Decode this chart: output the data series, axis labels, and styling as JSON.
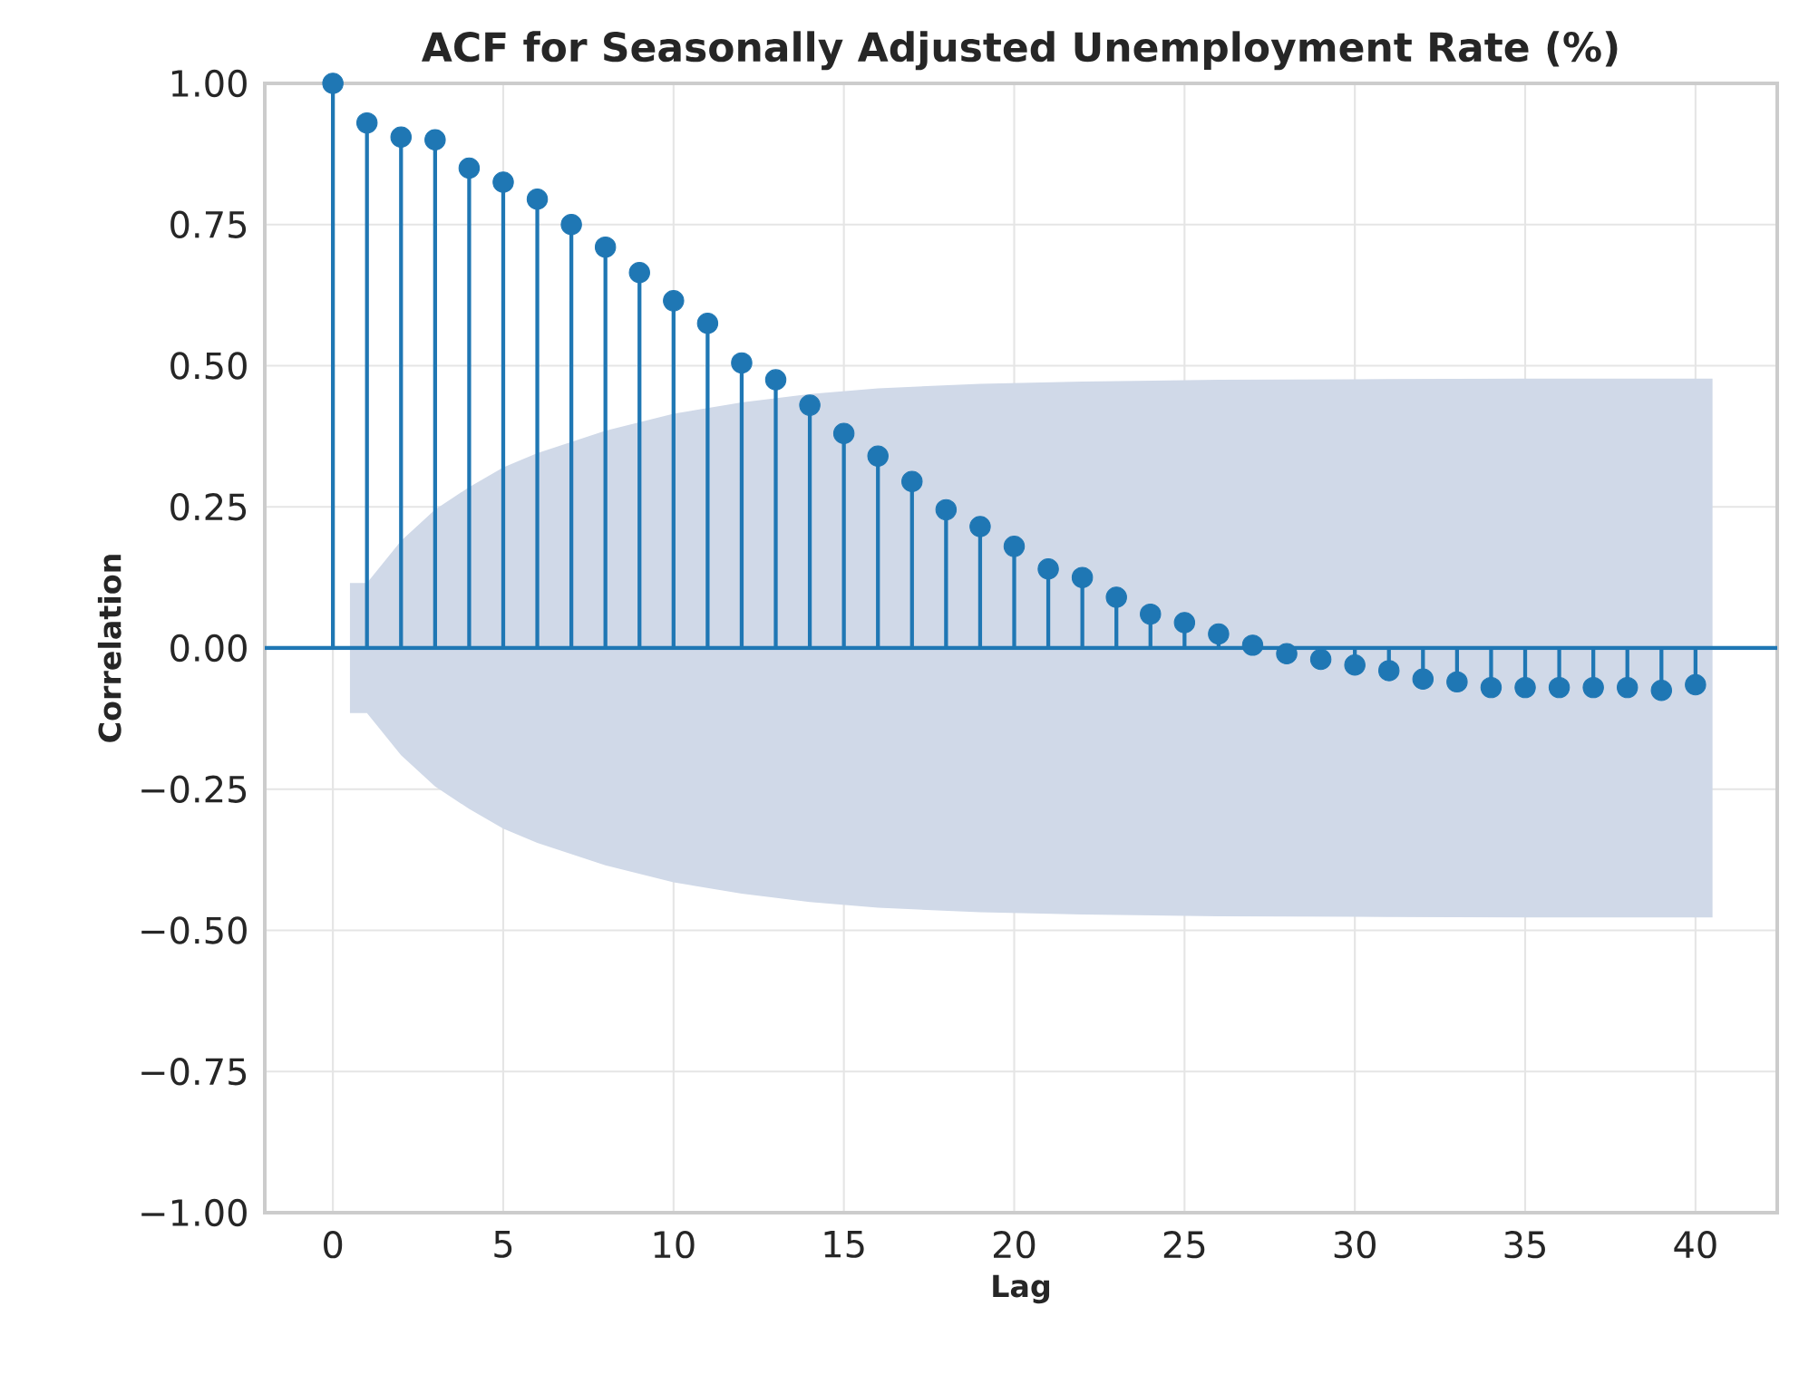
{
  "chart_data": {
    "type": "lollipop",
    "title": "ACF for Seasonally Adjusted Unemployment Rate (%)",
    "xlabel": "Lag",
    "ylabel": "Correlation",
    "xlim": [
      -2,
      42.4
    ],
    "ylim": [
      -1,
      1
    ],
    "xticks": [
      0,
      5,
      10,
      15,
      20,
      25,
      30,
      35,
      40
    ],
    "yticks": [
      {
        "value": -1,
        "label": "−1.00"
      },
      {
        "value": -0.75,
        "label": "−0.75"
      },
      {
        "value": -0.5,
        "label": "−0.50"
      },
      {
        "value": -0.25,
        "label": "−0.25"
      },
      {
        "value": 0,
        "label": "0.00"
      },
      {
        "value": 0.25,
        "label": "0.25"
      },
      {
        "value": 0.5,
        "label": "0.50"
      },
      {
        "value": 0.75,
        "label": "0.75"
      },
      {
        "value": 1,
        "label": "1.00"
      }
    ],
    "grid": true,
    "marker": "circle",
    "ref_lines": [
      {
        "axis": "y",
        "value": 0,
        "color": "#1f77b4"
      }
    ],
    "series": [
      {
        "type": "area",
        "color": "#d0d9e8",
        "values": [
          null,
          null,
          null,
          null,
          null,
          null,
          null,
          null,
          null,
          null,
          null,
          null,
          null,
          null,
          null,
          null,
          null,
          null
        ],
        "x": [
          0.5,
          1,
          2,
          3,
          4,
          5,
          6,
          8,
          10,
          12,
          14,
          16,
          19,
          22,
          26,
          30,
          35,
          40.5
        ],
        "lower": [
          -0.115,
          -0.115,
          -0.19,
          -0.245,
          -0.285,
          -0.32,
          -0.345,
          -0.385,
          -0.415,
          -0.435,
          -0.45,
          -0.46,
          -0.468,
          -0.472,
          -0.475,
          -0.476,
          -0.477,
          -0.477
        ],
        "upper": [
          0.115,
          0.115,
          0.19,
          0.245,
          0.285,
          0.32,
          0.345,
          0.385,
          0.415,
          0.435,
          0.45,
          0.46,
          0.468,
          0.472,
          0.475,
          0.476,
          0.477,
          0.477
        ]
      },
      {
        "color": "#1f77b4",
        "x": [
          0,
          1,
          2,
          3,
          4,
          5,
          6,
          7,
          8,
          9,
          10,
          11,
          12,
          13,
          14,
          15,
          16,
          17,
          18,
          19,
          20,
          21,
          22,
          23,
          24,
          25,
          26,
          27,
          28,
          29,
          30,
          31,
          32,
          33,
          34,
          35,
          36,
          37,
          38,
          39,
          40
        ],
        "values": [
          1.0,
          0.93,
          0.905,
          0.9,
          0.85,
          0.825,
          0.795,
          0.75,
          0.71,
          0.665,
          0.615,
          0.575,
          0.505,
          0.475,
          0.43,
          0.38,
          0.34,
          0.295,
          0.245,
          0.215,
          0.18,
          0.14,
          0.125,
          0.09,
          0.06,
          0.045,
          0.025,
          0.005,
          -0.01,
          -0.02,
          -0.03,
          -0.04,
          -0.055,
          -0.06,
          -0.07,
          -0.07,
          -0.07,
          -0.07,
          -0.07,
          -0.075,
          -0.065
        ]
      }
    ]
  }
}
